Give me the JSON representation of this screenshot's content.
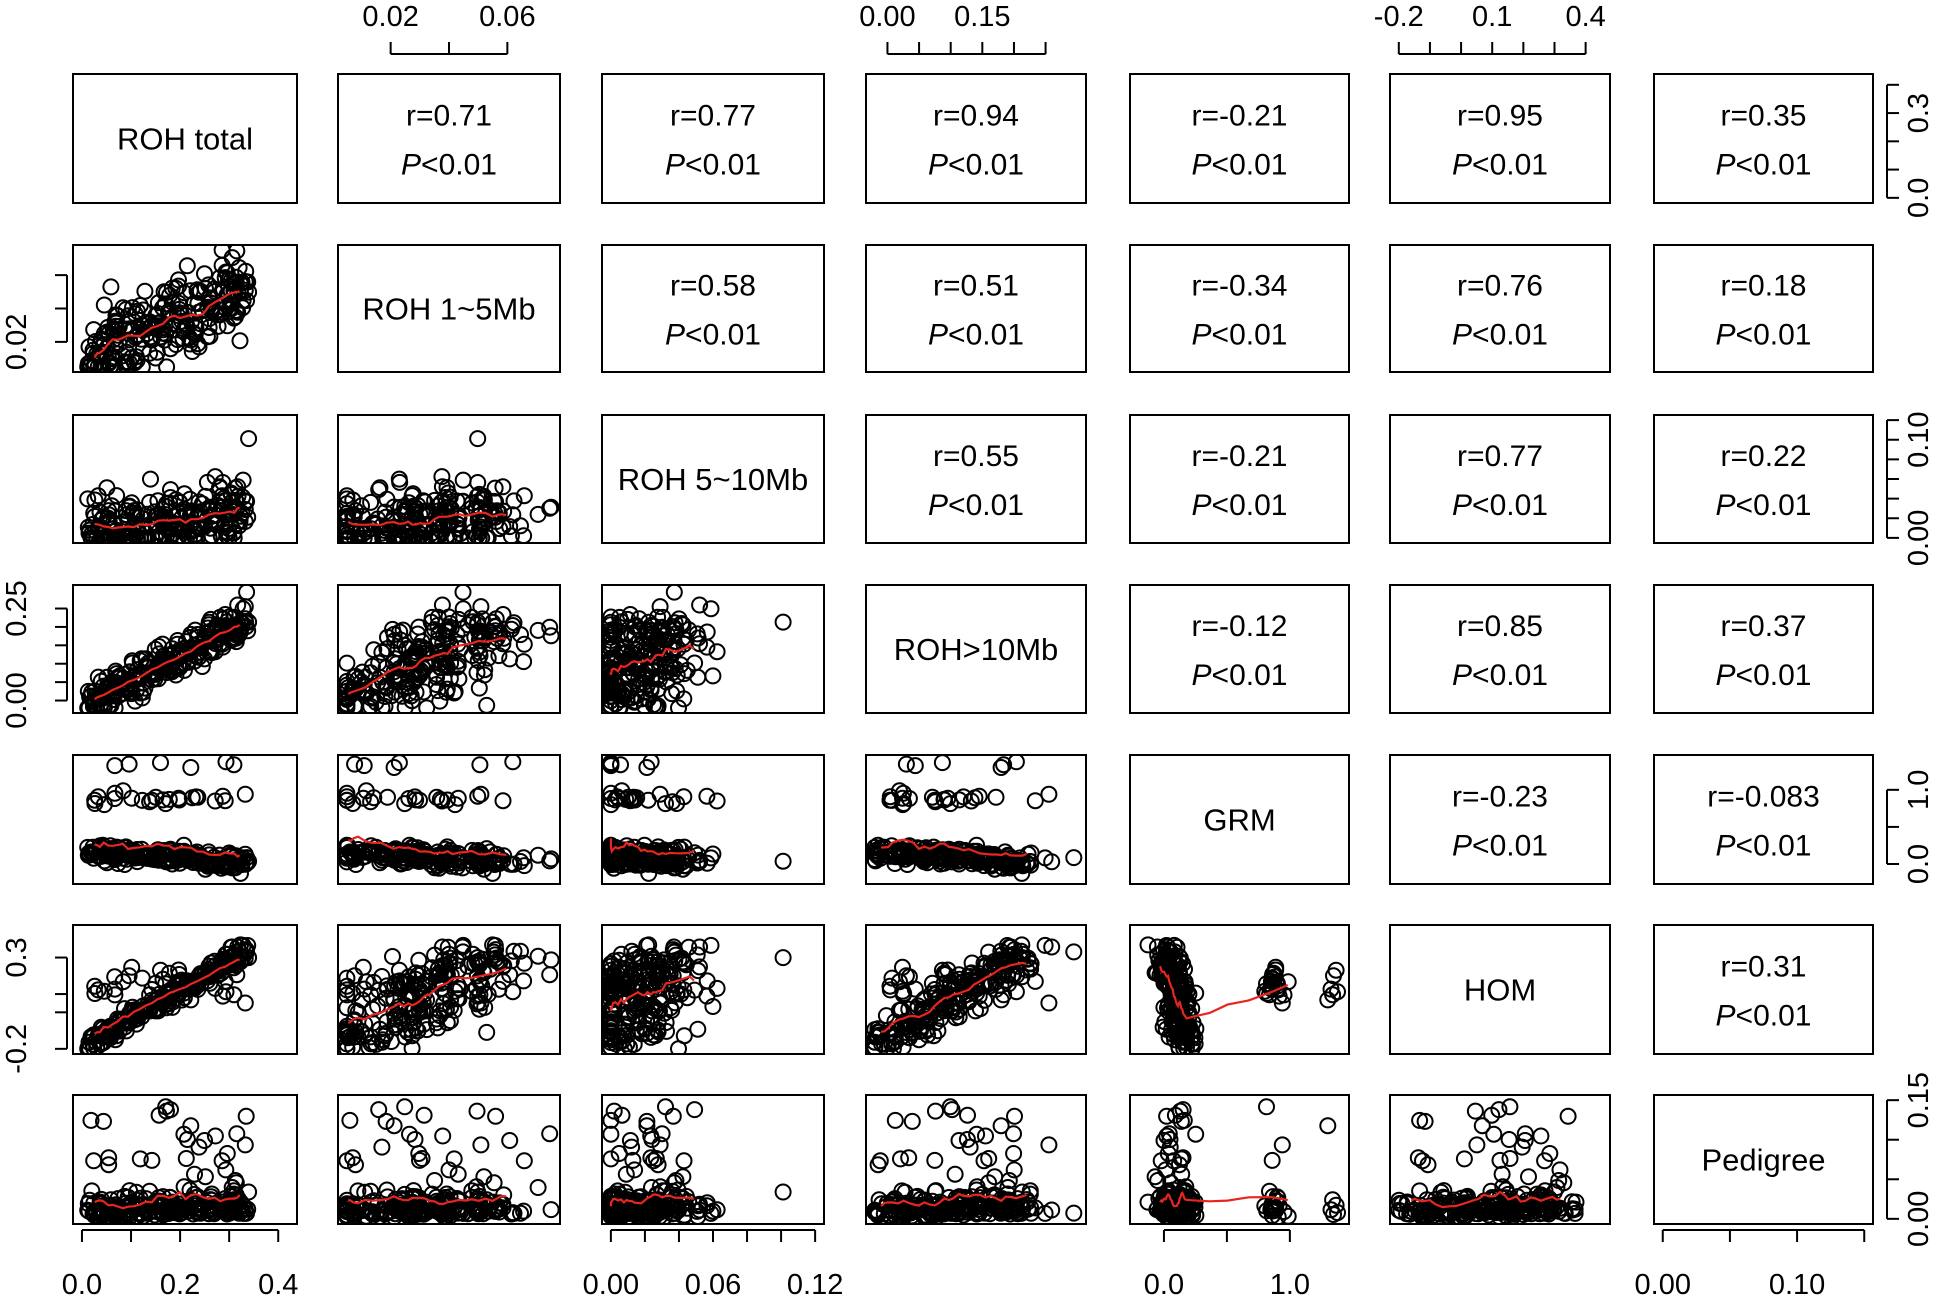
{
  "chart_data": {
    "type": "scatter",
    "layout": "pairs-matrix",
    "variables": [
      "ROH total",
      "ROH 1~5Mb",
      "ROH 5~10Mb",
      "ROH>10Mb",
      "GRM",
      "HOM",
      "Pedigree"
    ],
    "correlations": [
      {
        "row": 0,
        "col": 1,
        "r": "r=0.71",
        "p_sym": "P",
        "p_rest": "<0.01"
      },
      {
        "row": 0,
        "col": 2,
        "r": "r=0.77",
        "p_sym": "P",
        "p_rest": "<0.01"
      },
      {
        "row": 0,
        "col": 3,
        "r": "r=0.94",
        "p_sym": "P",
        "p_rest": "<0.01"
      },
      {
        "row": 0,
        "col": 4,
        "r": "r=-0.21",
        "p_sym": "P",
        "p_rest": "<0.01"
      },
      {
        "row": 0,
        "col": 5,
        "r": "r=0.95",
        "p_sym": "P",
        "p_rest": "<0.01"
      },
      {
        "row": 0,
        "col": 6,
        "r": "r=0.35",
        "p_sym": "P",
        "p_rest": "<0.01"
      },
      {
        "row": 1,
        "col": 2,
        "r": "r=0.58",
        "p_sym": "P",
        "p_rest": "<0.01"
      },
      {
        "row": 1,
        "col": 3,
        "r": "r=0.51",
        "p_sym": "P",
        "p_rest": "<0.01"
      },
      {
        "row": 1,
        "col": 4,
        "r": "r=-0.34",
        "p_sym": "P",
        "p_rest": "<0.01"
      },
      {
        "row": 1,
        "col": 5,
        "r": "r=0.76",
        "p_sym": "P",
        "p_rest": "<0.01"
      },
      {
        "row": 1,
        "col": 6,
        "r": "r=0.18",
        "p_sym": "P",
        "p_rest": "<0.01"
      },
      {
        "row": 2,
        "col": 3,
        "r": "r=0.55",
        "p_sym": "P",
        "p_rest": "<0.01"
      },
      {
        "row": 2,
        "col": 4,
        "r": "r=-0.21",
        "p_sym": "P",
        "p_rest": "<0.01"
      },
      {
        "row": 2,
        "col": 5,
        "r": "r=0.77",
        "p_sym": "P",
        "p_rest": "<0.01"
      },
      {
        "row": 2,
        "col": 6,
        "r": "r=0.22",
        "p_sym": "P",
        "p_rest": "<0.01"
      },
      {
        "row": 3,
        "col": 4,
        "r": "r=-0.12",
        "p_sym": "P",
        "p_rest": "<0.01"
      },
      {
        "row": 3,
        "col": 5,
        "r": "r=0.85",
        "p_sym": "P",
        "p_rest": "<0.01"
      },
      {
        "row": 3,
        "col": 6,
        "r": "r=0.37",
        "p_sym": "P",
        "p_rest": "<0.01"
      },
      {
        "row": 4,
        "col": 5,
        "r": "r=-0.23",
        "p_sym": "P",
        "p_rest": "<0.01"
      },
      {
        "row": 4,
        "col": 6,
        "r": "r=-0.083",
        "p_sym": "P",
        "p_rest": "<0.01"
      },
      {
        "row": 5,
        "col": 6,
        "r": "r=0.31",
        "p_sym": "P",
        "p_rest": "<0.01"
      }
    ],
    "ranges": [
      [
        0.0,
        0.42
      ],
      [
        0.005,
        0.075
      ],
      [
        0.0,
        0.12
      ],
      [
        -0.02,
        0.3
      ],
      [
        -0.2,
        1.4
      ],
      [
        -0.2,
        0.45
      ],
      [
        0.0,
        0.15
      ]
    ],
    "axes": {
      "bottom": [
        {
          "col": 0,
          "ticks": [
            0.0,
            0.1,
            0.2,
            0.3,
            0.4
          ],
          "labels": [
            {
              "v": 0.0,
              "t": "0.0"
            },
            {
              "v": 0.2,
              "t": "0.2"
            },
            {
              "v": 0.4,
              "t": "0.4"
            }
          ]
        },
        {
          "col": 2,
          "ticks": [
            0.0,
            0.02,
            0.04,
            0.06,
            0.08,
            0.1,
            0.12
          ],
          "labels": [
            {
              "v": 0.0,
              "t": "0.00"
            },
            {
              "v": 0.06,
              "t": "0.06"
            },
            {
              "v": 0.12,
              "t": "0.12"
            }
          ]
        },
        {
          "col": 4,
          "ticks": [
            0.0,
            0.5,
            1.0
          ],
          "labels": [
            {
              "v": 0.0,
              "t": "0.0"
            },
            {
              "v": 1.0,
              "t": "1.0"
            }
          ]
        },
        {
          "col": 6,
          "ticks": [
            0.0,
            0.05,
            0.1,
            0.15
          ],
          "labels": [
            {
              "v": 0.0,
              "t": "0.00"
            },
            {
              "v": 0.1,
              "t": "0.10"
            }
          ]
        }
      ],
      "top": [
        {
          "col": 1,
          "ticks": [
            0.02,
            0.04,
            0.06
          ],
          "labels": [
            {
              "v": 0.02,
              "t": "0.02"
            },
            {
              "v": 0.06,
              "t": "0.06"
            }
          ]
        },
        {
          "col": 3,
          "ticks": [
            0.0,
            0.05,
            0.1,
            0.15,
            0.2,
            0.25
          ],
          "labels": [
            {
              "v": 0.0,
              "t": "0.00"
            },
            {
              "v": 0.15,
              "t": "0.15"
            }
          ]
        },
        {
          "col": 5,
          "ticks": [
            -0.2,
            -0.1,
            0.0,
            0.1,
            0.2,
            0.3,
            0.4
          ],
          "labels": [
            {
              "v": -0.2,
              "t": "-0.2"
            },
            {
              "v": 0.1,
              "t": "0.1"
            },
            {
              "v": 0.4,
              "t": "0.4"
            }
          ]
        }
      ],
      "left": [
        {
          "row": 1,
          "ticks": [
            0.02,
            0.04,
            0.06
          ],
          "labels": [
            {
              "v": 0.02,
              "t": "0.02"
            }
          ]
        },
        {
          "row": 3,
          "ticks": [
            0.0,
            0.05,
            0.1,
            0.15,
            0.2,
            0.25
          ],
          "labels": [
            {
              "v": 0.0,
              "t": "0.00"
            },
            {
              "v": 0.25,
              "t": "0.25"
            }
          ]
        },
        {
          "row": 5,
          "ticks": [
            -0.2,
            0.0,
            0.1,
            0.3
          ],
          "labels": [
            {
              "v": -0.2,
              "t": "-0.2"
            },
            {
              "v": 0.3,
              "t": "0.3"
            }
          ]
        }
      ],
      "right": [
        {
          "row": 0,
          "ticks": [
            0.0,
            0.1,
            0.2,
            0.3,
            0.4
          ],
          "labels": [
            {
              "v": 0.0,
              "t": "0.0"
            },
            {
              "v": 0.3,
              "t": "0.3"
            }
          ]
        },
        {
          "row": 2,
          "ticks": [
            0.0,
            0.02,
            0.04,
            0.06,
            0.08,
            0.1,
            0.12
          ],
          "labels": [
            {
              "v": 0.0,
              "t": "0.00"
            },
            {
              "v": 0.1,
              "t": "0.10"
            }
          ]
        },
        {
          "row": 4,
          "ticks": [
            0.0,
            0.5,
            1.0
          ],
          "labels": [
            {
              "v": 0.0,
              "t": "0.0"
            },
            {
              "v": 1.0,
              "t": "1.0"
            }
          ]
        },
        {
          "row": 6,
          "ticks": [
            0.0,
            0.05,
            0.1,
            0.15
          ],
          "labels": [
            {
              "v": 0.0,
              "t": "0.00"
            },
            {
              "v": 0.15,
              "t": "0.15"
            }
          ]
        }
      ]
    },
    "point_style": "open-circle",
    "smoother_color": "#e8251e",
    "point_color": "#000000"
  }
}
